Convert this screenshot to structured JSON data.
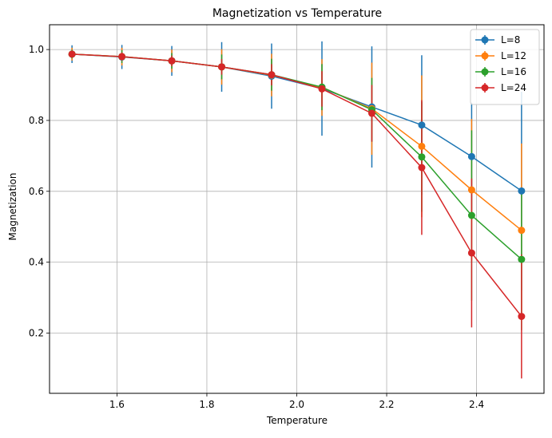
{
  "chart_data": {
    "type": "line",
    "title": "Magnetization vs Temperature",
    "xlabel": "Temperature",
    "ylabel": "Magnetization",
    "xlim": [
      1.45,
      2.55
    ],
    "ylim": [
      0.03,
      1.07
    ],
    "xticks": [
      1.6,
      1.8,
      2.0,
      2.2,
      2.4
    ],
    "xtick_labels": [
      "1.6",
      "1.8",
      "2.0",
      "2.2",
      "2.4"
    ],
    "yticks": [
      0.2,
      0.4,
      0.6,
      0.8,
      1.0
    ],
    "ytick_labels": [
      "0.2",
      "0.4",
      "0.6",
      "0.8",
      "1.0"
    ],
    "grid": true,
    "legend_position": "top-right",
    "x": [
      1.5,
      1.611,
      1.722,
      1.833,
      1.944,
      2.056,
      2.167,
      2.278,
      2.389,
      2.5
    ],
    "series": [
      {
        "name": "L=8",
        "color": "#1f77b4",
        "values": [
          0.987,
          0.979,
          0.968,
          0.951,
          0.925,
          0.89,
          0.838,
          0.787,
          0.698,
          0.601
        ],
        "errors": [
          0.025,
          0.034,
          0.042,
          0.07,
          0.092,
          0.133,
          0.171,
          0.197,
          0.152,
          0.28
        ]
      },
      {
        "name": "L=12",
        "color": "#ff7f0e",
        "values": [
          0.987,
          0.98,
          0.968,
          0.951,
          0.928,
          0.893,
          0.833,
          0.727,
          0.604,
          0.49
        ],
        "errors": [
          0.018,
          0.025,
          0.032,
          0.05,
          0.06,
          0.08,
          0.13,
          0.2,
          0.2,
          0.245
        ]
      },
      {
        "name": "L=16",
        "color": "#2ca02c",
        "values": [
          0.987,
          0.98,
          0.968,
          0.951,
          0.929,
          0.894,
          0.83,
          0.697,
          0.532,
          0.408
        ],
        "errors": [
          0.012,
          0.018,
          0.022,
          0.035,
          0.045,
          0.065,
          0.09,
          0.155,
          0.24,
          0.2
        ]
      },
      {
        "name": "L=24",
        "color": "#d62728",
        "values": [
          0.987,
          0.98,
          0.968,
          0.951,
          0.929,
          0.889,
          0.82,
          0.667,
          0.426,
          0.247
        ],
        "errors": [
          0.008,
          0.012,
          0.015,
          0.022,
          0.03,
          0.05,
          0.08,
          0.19,
          0.21,
          0.175
        ]
      }
    ]
  }
}
